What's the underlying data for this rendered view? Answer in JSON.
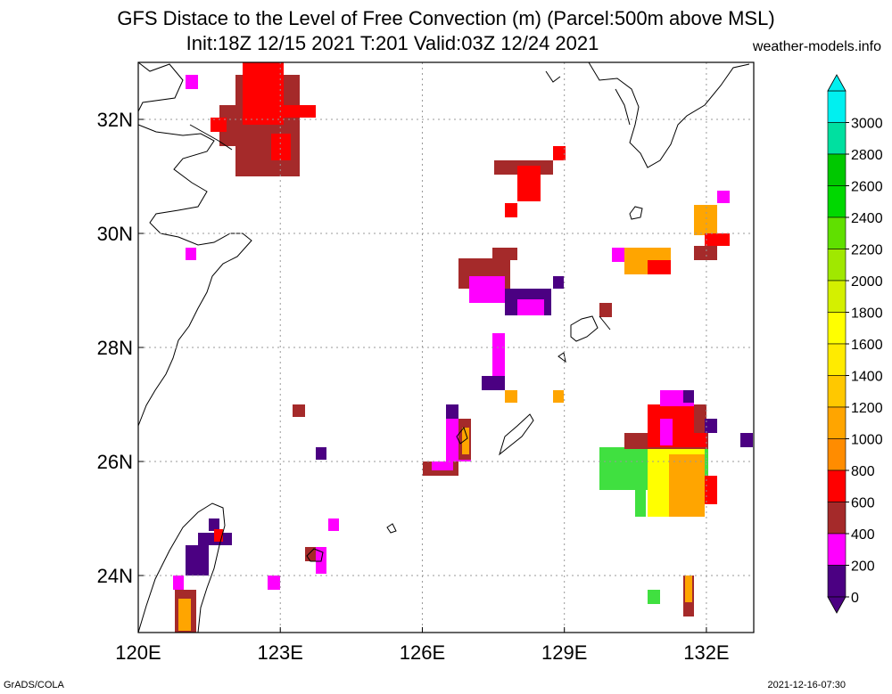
{
  "header": {
    "title_line1": "GFS Distace to the Level of Free Convection (m) (Parcel:500m above MSL)",
    "title_line2": "Init:18Z 12/15 2021 T:201 Valid:03Z 12/24 2021",
    "site": "weather-models.info"
  },
  "footer": {
    "left": "GrADS/COLA",
    "right": "2021-12-16-07:30"
  },
  "map": {
    "lon_range": [
      120,
      133
    ],
    "lat_range": [
      23,
      33
    ],
    "lon_ticks": [
      "120E",
      "123E",
      "126E",
      "129E",
      "132E"
    ],
    "lat_ticks": [
      "24N",
      "26N",
      "28N",
      "30N",
      "32N"
    ]
  },
  "colorbar": {
    "labels": [
      "0",
      "200",
      "400",
      "600",
      "800",
      "1000",
      "1200",
      "1400",
      "1600",
      "1800",
      "2000",
      "2200",
      "2400",
      "2600",
      "2800",
      "3000"
    ],
    "colors": [
      "#4b0082",
      "#ff00ff",
      "#a52a2a",
      "#ff0000",
      "#ff8c00",
      "#ffa500",
      "#ffc800",
      "#ffeb00",
      "#ffff00",
      "#d4f000",
      "#a0e800",
      "#60e000",
      "#00d800",
      "#00c800",
      "#00e0a0",
      "#00f0f0"
    ]
  }
}
